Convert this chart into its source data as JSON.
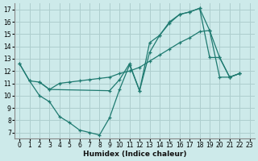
{
  "xlabel": "Humidex (Indice chaleur)",
  "background_color": "#cdeaea",
  "grid_color": "#aecece",
  "line_color": "#1e7a70",
  "xlim": [
    -0.5,
    23.5
  ],
  "ylim": [
    6.5,
    17.5
  ],
  "xticks": [
    0,
    1,
    2,
    3,
    4,
    5,
    6,
    7,
    8,
    9,
    10,
    11,
    12,
    13,
    14,
    15,
    16,
    17,
    18,
    19,
    20,
    21,
    22,
    23
  ],
  "yticks": [
    7,
    8,
    9,
    10,
    11,
    12,
    13,
    14,
    15,
    16,
    17
  ],
  "line1_x": [
    0,
    1,
    2,
    3,
    4,
    5,
    6,
    7,
    8,
    9,
    10,
    11,
    12,
    13,
    14,
    15,
    16,
    17,
    18,
    19,
    20,
    21,
    22
  ],
  "line1_y": [
    12.6,
    11.2,
    10.0,
    9.5,
    8.3,
    7.8,
    7.2,
    7.0,
    6.8,
    8.2,
    10.5,
    12.5,
    10.4,
    14.3,
    14.9,
    15.9,
    16.6,
    16.8,
    17.1,
    13.1,
    13.1,
    11.5,
    11.8
  ],
  "line2_x": [
    0,
    1,
    2,
    3,
    4,
    5,
    6,
    7,
    8,
    9,
    10,
    11,
    12,
    13,
    14,
    15,
    16,
    17,
    18,
    19,
    20,
    21,
    22
  ],
  "line2_y": [
    12.6,
    11.2,
    11.1,
    10.5,
    11.0,
    11.1,
    11.2,
    11.3,
    11.4,
    11.5,
    11.8,
    12.0,
    12.3,
    12.8,
    13.3,
    13.8,
    14.3,
    14.7,
    15.2,
    15.3,
    11.5,
    11.5,
    11.8
  ],
  "line3_x": [
    2,
    3,
    9,
    10,
    11,
    12,
    13,
    14,
    15,
    16,
    17,
    18,
    19,
    20,
    21,
    22
  ],
  "line3_y": [
    11.1,
    10.5,
    10.4,
    11.3,
    12.6,
    10.4,
    13.5,
    14.9,
    16.0,
    16.6,
    16.8,
    17.1,
    15.3,
    13.1,
    11.5,
    11.8
  ]
}
